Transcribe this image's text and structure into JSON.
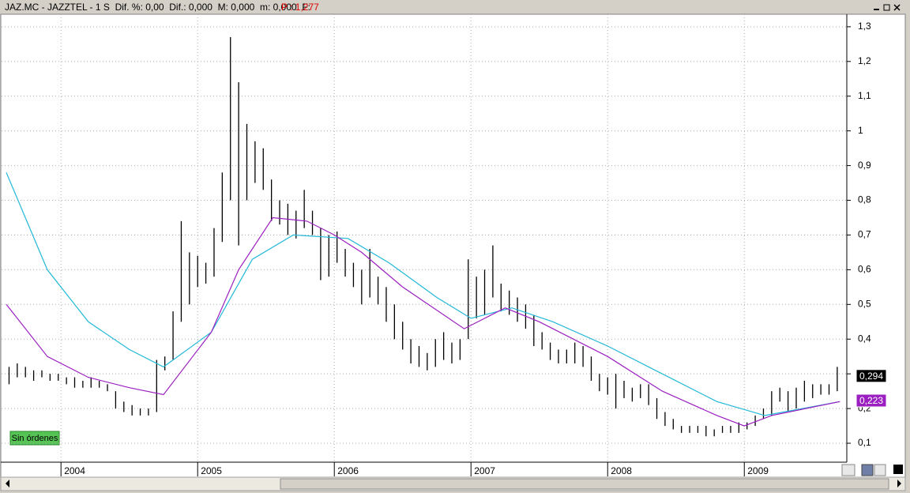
{
  "header": {
    "title": "JAZ.MC - JAZZTEL - 1 S  Dif. %: 0,00  Dif.: 0,000  M: 0,000  m: 0,000  F:",
    "price": "P : 1,277"
  },
  "order_status": "Sin órdenes",
  "chart_data": {
    "type": "hl",
    "color": "#000000",
    "xlim": [
      2003.6,
      2009.75
    ],
    "xticks": [
      2004,
      2005,
      2006,
      2007,
      2008,
      2009
    ],
    "ylim": [
      0.05,
      1.327
    ],
    "yticks": [
      {
        "value": 0.1,
        "label": "0,1"
      },
      {
        "value": 0.2,
        "label": "0,2"
      },
      {
        "value": 0.3,
        "label": "0,3"
      },
      {
        "value": 0.4,
        "label": "0,4"
      },
      {
        "value": 0.5,
        "label": "0,5"
      },
      {
        "value": 0.6,
        "label": "0,6"
      },
      {
        "value": 0.7,
        "label": "0,7"
      },
      {
        "value": 0.8,
        "label": "0,8"
      },
      {
        "value": 0.9,
        "label": "0,9"
      },
      {
        "value": 1,
        "label": "1"
      },
      {
        "value": 1.1,
        "label": "1,1"
      },
      {
        "value": 1.2,
        "label": "1,2"
      },
      {
        "value": 1.3,
        "label": "1,3"
      }
    ],
    "grid": true,
    "x": [
      2003.62,
      2003.68,
      2003.74,
      2003.8,
      2003.86,
      2003.92,
      2003.98,
      2004.04,
      2004.1,
      2004.16,
      2004.22,
      2004.28,
      2004.34,
      2004.4,
      2004.46,
      2004.52,
      2004.58,
      2004.64,
      2004.7,
      2004.76,
      2004.82,
      2004.88,
      2004.94,
      2005.0,
      2005.06,
      2005.12,
      2005.18,
      2005.24,
      2005.3,
      2005.36,
      2005.42,
      2005.48,
      2005.54,
      2005.6,
      2005.66,
      2005.72,
      2005.78,
      2005.84,
      2005.9,
      2005.96,
      2006.02,
      2006.08,
      2006.14,
      2006.2,
      2006.26,
      2006.32,
      2006.38,
      2006.44,
      2006.5,
      2006.56,
      2006.62,
      2006.68,
      2006.74,
      2006.8,
      2006.86,
      2006.92,
      2006.98,
      2007.04,
      2007.1,
      2007.16,
      2007.22,
      2007.28,
      2007.34,
      2007.4,
      2007.46,
      2007.52,
      2007.58,
      2007.64,
      2007.7,
      2007.76,
      2007.82,
      2007.88,
      2007.94,
      2008.0,
      2008.06,
      2008.12,
      2008.18,
      2008.24,
      2008.3,
      2008.36,
      2008.42,
      2008.48,
      2008.54,
      2008.6,
      2008.66,
      2008.72,
      2008.78,
      2008.84,
      2008.9,
      2008.96,
      2009.02,
      2009.08,
      2009.14,
      2009.2,
      2009.26,
      2009.32,
      2009.38,
      2009.44,
      2009.5,
      2009.56,
      2009.62,
      2009.68
    ],
    "high": [
      0.32,
      0.33,
      0.32,
      0.31,
      0.31,
      0.3,
      0.3,
      0.29,
      0.29,
      0.28,
      0.29,
      0.28,
      0.27,
      0.25,
      0.22,
      0.21,
      0.2,
      0.2,
      0.34,
      0.35,
      0.48,
      0.74,
      0.65,
      0.64,
      0.62,
      0.72,
      0.88,
      1.27,
      1.14,
      1.02,
      0.97,
      0.95,
      0.86,
      0.8,
      0.79,
      0.77,
      0.83,
      0.77,
      0.72,
      0.7,
      0.71,
      0.66,
      0.62,
      0.6,
      0.66,
      0.58,
      0.55,
      0.5,
      0.45,
      0.4,
      0.38,
      0.36,
      0.4,
      0.42,
      0.39,
      0.4,
      0.63,
      0.58,
      0.6,
      0.67,
      0.56,
      0.54,
      0.52,
      0.5,
      0.47,
      0.42,
      0.39,
      0.37,
      0.37,
      0.39,
      0.38,
      0.35,
      0.3,
      0.29,
      0.3,
      0.28,
      0.26,
      0.27,
      0.27,
      0.23,
      0.19,
      0.17,
      0.15,
      0.15,
      0.15,
      0.15,
      0.14,
      0.15,
      0.15,
      0.16,
      0.16,
      0.18,
      0.2,
      0.25,
      0.26,
      0.25,
      0.26,
      0.28,
      0.27,
      0.27,
      0.27,
      0.32
    ],
    "low": [
      0.27,
      0.29,
      0.29,
      0.28,
      0.29,
      0.28,
      0.28,
      0.27,
      0.26,
      0.26,
      0.26,
      0.26,
      0.25,
      0.2,
      0.19,
      0.18,
      0.18,
      0.18,
      0.19,
      0.31,
      0.34,
      0.45,
      0.5,
      0.55,
      0.56,
      0.58,
      0.68,
      0.8,
      0.67,
      0.8,
      0.85,
      0.83,
      0.74,
      0.73,
      0.7,
      0.69,
      0.72,
      0.7,
      0.57,
      0.58,
      0.62,
      0.58,
      0.55,
      0.5,
      0.52,
      0.5,
      0.45,
      0.4,
      0.37,
      0.33,
      0.32,
      0.31,
      0.32,
      0.34,
      0.33,
      0.34,
      0.4,
      0.46,
      0.47,
      0.52,
      0.48,
      0.47,
      0.45,
      0.43,
      0.38,
      0.37,
      0.34,
      0.33,
      0.33,
      0.33,
      0.32,
      0.28,
      0.25,
      0.24,
      0.2,
      0.23,
      0.22,
      0.23,
      0.21,
      0.17,
      0.15,
      0.14,
      0.13,
      0.13,
      0.13,
      0.12,
      0.12,
      0.13,
      0.13,
      0.13,
      0.14,
      0.15,
      0.17,
      0.18,
      0.22,
      0.19,
      0.2,
      0.22,
      0.23,
      0.24,
      0.24,
      0.25
    ],
    "lines": [
      {
        "color": "#22b8d8",
        "x": [
          2003.6,
          2003.9,
          2004.2,
          2004.5,
          2004.75,
          2005.1,
          2005.4,
          2005.7,
          2006.1,
          2006.4,
          2006.75,
          2007.0,
          2007.3,
          2007.6,
          2008.0,
          2008.4,
          2008.8,
          2009.15,
          2009.7
        ],
        "values": [
          0.88,
          0.6,
          0.45,
          0.37,
          0.32,
          0.42,
          0.63,
          0.7,
          0.69,
          0.62,
          0.52,
          0.46,
          0.49,
          0.45,
          0.38,
          0.3,
          0.22,
          0.18,
          0.22
        ]
      },
      {
        "color": "#9b1fc0",
        "x": [
          2003.6,
          2003.9,
          2004.2,
          2004.5,
          2004.75,
          2005.1,
          2005.3,
          2005.55,
          2005.8,
          2006.0,
          2006.2,
          2006.5,
          2006.95,
          2007.25,
          2007.5,
          2008.0,
          2008.4,
          2008.8,
          2009.0,
          2009.2,
          2009.7
        ],
        "values": [
          0.5,
          0.35,
          0.29,
          0.26,
          0.24,
          0.42,
          0.6,
          0.75,
          0.74,
          0.7,
          0.65,
          0.55,
          0.43,
          0.49,
          0.45,
          0.35,
          0.25,
          0.18,
          0.15,
          0.18,
          0.22
        ]
      }
    ],
    "last_labels": [
      {
        "value": 0.294,
        "label": "0,294",
        "color": "#000000"
      },
      {
        "value": 0.223,
        "label": "0,223",
        "color": "#9b1fc0"
      }
    ]
  }
}
